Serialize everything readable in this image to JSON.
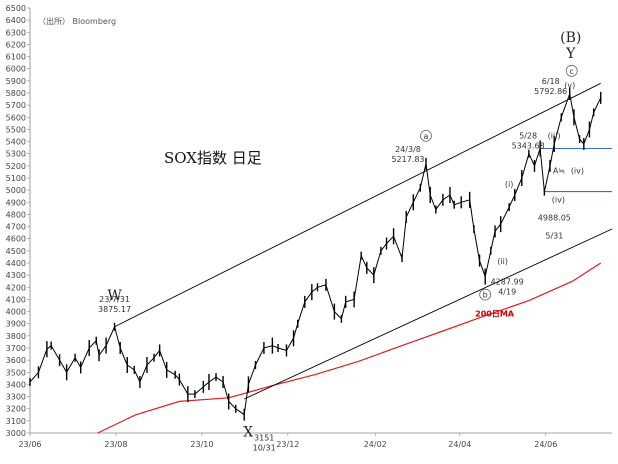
{
  "chart_data": {
    "type": "line",
    "source": "（出所） Bloomberg",
    "title": "SOX指数 日足",
    "colors": {
      "price": "#000000",
      "ma": "#e02020",
      "channel": "#000000",
      "hline": "#3a6fd8"
    },
    "ylim": [
      3000,
      6500
    ],
    "yticks": [
      3000,
      3100,
      3200,
      3300,
      3400,
      3500,
      3600,
      3700,
      3800,
      3900,
      4000,
      4100,
      4200,
      4300,
      4400,
      4500,
      4600,
      4700,
      4800,
      4900,
      5000,
      5100,
      5200,
      5300,
      5400,
      5500,
      5600,
      5700,
      5800,
      5900,
      6000,
      6100,
      6200,
      6300,
      6400,
      6500
    ],
    "xlim": [
      "2023-06-01",
      "2024-07-18"
    ],
    "xticks": [
      {
        "date": "2023-06-01",
        "label": "23/06"
      },
      {
        "date": "2023-08-01",
        "label": "23/08"
      },
      {
        "date": "2023-10-01",
        "label": "23/10"
      },
      {
        "date": "2023-12-01",
        "label": "23/12"
      },
      {
        "date": "2024-02-01",
        "label": "24/02"
      },
      {
        "date": "2024-04-01",
        "label": "24/04"
      },
      {
        "date": "2024-06-01",
        "label": "24/06"
      }
    ],
    "price_series": {
      "name": "SOX",
      "points": [
        [
          "2023-06-01",
          3420
        ],
        [
          "2023-06-07",
          3500
        ],
        [
          "2023-06-13",
          3690
        ],
        [
          "2023-06-16",
          3720
        ],
        [
          "2023-06-22",
          3600
        ],
        [
          "2023-06-27",
          3500
        ],
        [
          "2023-07-03",
          3620
        ],
        [
          "2023-07-07",
          3540
        ],
        [
          "2023-07-13",
          3700
        ],
        [
          "2023-07-18",
          3760
        ],
        [
          "2023-07-20",
          3640
        ],
        [
          "2023-07-25",
          3720
        ],
        [
          "2023-07-31",
          3875
        ],
        [
          "2023-08-04",
          3700
        ],
        [
          "2023-08-09",
          3560
        ],
        [
          "2023-08-14",
          3520
        ],
        [
          "2023-08-18",
          3420
        ],
        [
          "2023-08-23",
          3560
        ],
        [
          "2023-08-28",
          3620
        ],
        [
          "2023-09-01",
          3680
        ],
        [
          "2023-09-06",
          3520
        ],
        [
          "2023-09-12",
          3480
        ],
        [
          "2023-09-15",
          3440
        ],
        [
          "2023-09-21",
          3320
        ],
        [
          "2023-09-26",
          3320
        ],
        [
          "2023-10-02",
          3380
        ],
        [
          "2023-10-06",
          3420
        ],
        [
          "2023-10-11",
          3460
        ],
        [
          "2023-10-16",
          3420
        ],
        [
          "2023-10-20",
          3260
        ],
        [
          "2023-10-25",
          3200
        ],
        [
          "2023-10-31",
          3151
        ],
        [
          "2023-11-03",
          3400
        ],
        [
          "2023-11-08",
          3560
        ],
        [
          "2023-11-14",
          3700
        ],
        [
          "2023-11-20",
          3720
        ],
        [
          "2023-11-24",
          3700
        ],
        [
          "2023-11-30",
          3680
        ],
        [
          "2023-12-05",
          3780
        ],
        [
          "2023-12-08",
          3900
        ],
        [
          "2023-12-13",
          4080
        ],
        [
          "2023-12-18",
          4160
        ],
        [
          "2023-12-22",
          4200
        ],
        [
          "2023-12-28",
          4220
        ],
        [
          "2024-01-03",
          4000
        ],
        [
          "2024-01-08",
          3940
        ],
        [
          "2024-01-11",
          4080
        ],
        [
          "2024-01-17",
          4100
        ],
        [
          "2024-01-22",
          4460
        ],
        [
          "2024-01-26",
          4360
        ],
        [
          "2024-01-31",
          4300
        ],
        [
          "2024-02-05",
          4500
        ],
        [
          "2024-02-09",
          4560
        ],
        [
          "2024-02-14",
          4620
        ],
        [
          "2024-02-20",
          4440
        ],
        [
          "2024-02-23",
          4780
        ],
        [
          "2024-02-28",
          4900
        ],
        [
          "2024-03-04",
          5020
        ],
        [
          "2024-03-08",
          5217
        ],
        [
          "2024-03-11",
          4960
        ],
        [
          "2024-03-15",
          4840
        ],
        [
          "2024-03-20",
          4920
        ],
        [
          "2024-03-25",
          4960
        ],
        [
          "2024-03-28",
          4880
        ],
        [
          "2024-04-02",
          4900
        ],
        [
          "2024-04-08",
          4920
        ],
        [
          "2024-04-11",
          4680
        ],
        [
          "2024-04-15",
          4420
        ],
        [
          "2024-04-19",
          4288
        ],
        [
          "2024-04-23",
          4500
        ],
        [
          "2024-04-26",
          4660
        ],
        [
          "2024-04-30",
          4720
        ],
        [
          "2024-05-06",
          4860
        ],
        [
          "2024-05-10",
          4960
        ],
        [
          "2024-05-15",
          5100
        ],
        [
          "2024-05-20",
          5300
        ],
        [
          "2024-05-24",
          5200
        ],
        [
          "2024-05-28",
          5343
        ],
        [
          "2024-05-31",
          4988
        ],
        [
          "2024-06-04",
          5200
        ],
        [
          "2024-06-07",
          5380
        ],
        [
          "2024-06-12",
          5600
        ],
        [
          "2024-06-18",
          5793
        ],
        [
          "2024-06-21",
          5600
        ],
        [
          "2024-06-25",
          5420
        ],
        [
          "2024-06-28",
          5380
        ],
        [
          "2024-07-02",
          5500
        ],
        [
          "2024-07-05",
          5640
        ],
        [
          "2024-07-10",
          5760
        ]
      ]
    },
    "ma_series": {
      "name": "200日MA",
      "points": [
        [
          "2023-07-19",
          3000
        ],
        [
          "2023-08-15",
          3150
        ],
        [
          "2023-09-15",
          3260
        ],
        [
          "2023-10-20",
          3290
        ],
        [
          "2023-11-20",
          3390
        ],
        [
          "2023-12-20",
          3480
        ],
        [
          "2024-01-20",
          3590
        ],
        [
          "2024-02-20",
          3720
        ],
        [
          "2024-03-20",
          3840
        ],
        [
          "2024-04-20",
          3970
        ],
        [
          "2024-05-20",
          4090
        ],
        [
          "2024-06-20",
          4250
        ],
        [
          "2024-07-10",
          4400
        ]
      ]
    },
    "channel_upper": [
      [
        "2023-07-31",
        3875
      ],
      [
        "2024-07-10",
        5880
      ]
    ],
    "channel_lower": [
      [
        "2023-10-31",
        3280
      ],
      [
        "2024-07-18",
        4680
      ]
    ],
    "horizontal_lines": [
      {
        "y": 5343,
        "x_start": "2024-05-28",
        "x_end": "2024-07-18"
      },
      {
        "y": 4988,
        "x_start": "2024-05-31",
        "x_end": "2024-07-18"
      }
    ],
    "annotations": [
      {
        "id": "w-value",
        "date": "2023-07-31",
        "lines": [
          "23/7/31",
          "3875.17"
        ],
        "wave": "W"
      },
      {
        "id": "x-value",
        "date": "2023-10-31",
        "lines": [
          "3151",
          "10/31"
        ],
        "wave": "X"
      },
      {
        "id": "a-value",
        "date": "2024-03-08",
        "lines": [
          "24/3/8",
          "5217.83"
        ],
        "wave": "a"
      },
      {
        "id": "b-value",
        "date": "2024-04-19",
        "lines": [
          "4287.99",
          "4/19"
        ],
        "wave": "b"
      },
      {
        "id": "iii-value",
        "date": "2024-05-28",
        "lines": [
          "5/28",
          "5343.68"
        ],
        "wave": "(iii)"
      },
      {
        "id": "iv-value",
        "date": "2024-05-31",
        "lines": [
          "4988.05",
          "5/31"
        ],
        "wave": "(iv)"
      },
      {
        "id": "c-value",
        "date": "2024-06-18",
        "lines": [
          "6/18",
          "5792.86"
        ],
        "wave": "c"
      }
    ],
    "wave_labels": {
      "B": "(B)",
      "Y": "Y",
      "W": "W",
      "X": "X",
      "a": "a",
      "b": "b",
      "c": "c",
      "i": "(i)",
      "ii": "(ii)",
      "iii": "(iii)",
      "iv_lower": "(iv)",
      "iv_box": "(iv)",
      "v": "(v)",
      "A": "A",
      "A_suffix": "≒"
    },
    "ma_label": "200日MA"
  }
}
